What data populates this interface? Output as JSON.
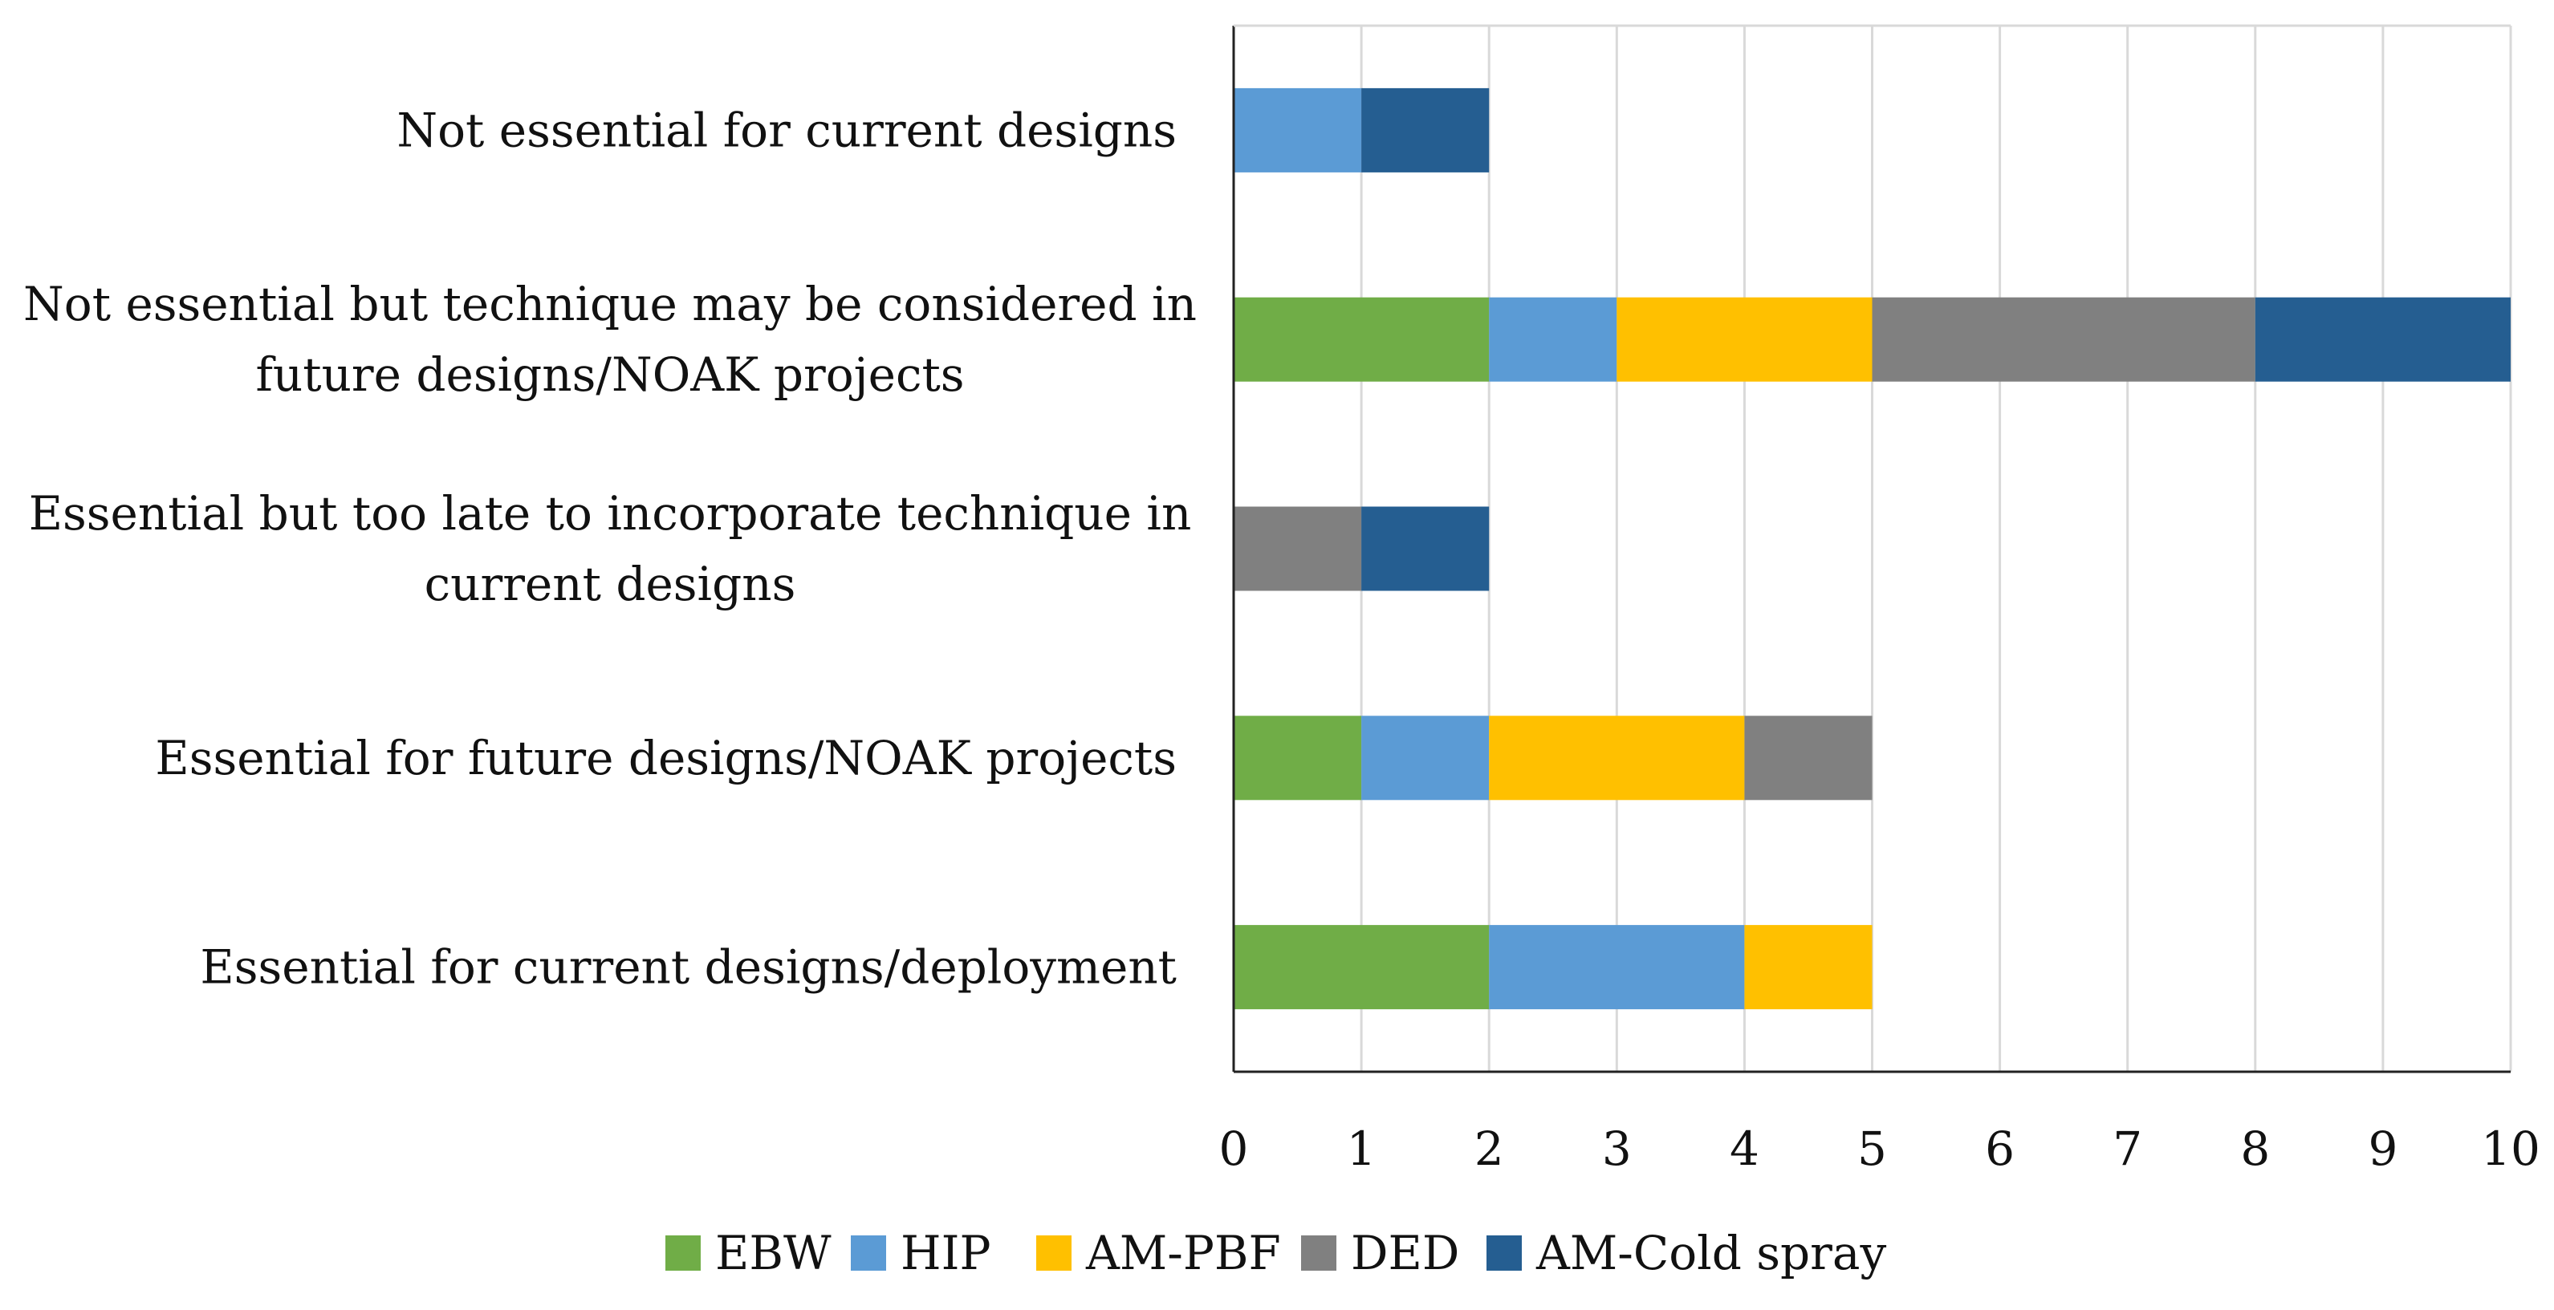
{
  "chart_data": {
    "type": "bar",
    "orientation": "horizontal",
    "stacked": true,
    "title": "",
    "xlabel": "",
    "ylabel": "",
    "xlim": [
      0,
      10
    ],
    "x_ticks": [
      0,
      1,
      2,
      3,
      4,
      5,
      6,
      7,
      8,
      9,
      10
    ],
    "grid": true,
    "legend_position": "bottom",
    "categories": [
      [
        "Not essential for current designs"
      ],
      [
        "Not essential but technique may be considered in",
        "future designs/NOAK projects"
      ],
      [
        "Essential but too late to incorporate technique in",
        "current designs"
      ],
      [
        "Essential for future designs/NOAK projects"
      ],
      [
        "Essential for current designs/deployment"
      ]
    ],
    "series": [
      {
        "name": "EBW",
        "color": "#70AD47",
        "values": [
          0,
          2,
          0,
          1,
          2
        ]
      },
      {
        "name": "HIP",
        "color": "#5B9BD5",
        "values": [
          1,
          1,
          0,
          1,
          2
        ]
      },
      {
        "name": "AM-PBF",
        "color": "#FFC000",
        "values": [
          0,
          2,
          0,
          2,
          1
        ]
      },
      {
        "name": "DED",
        "color": "#808080",
        "values": [
          0,
          3,
          1,
          1,
          0
        ]
      },
      {
        "name": "AM-Cold spray",
        "color": "#255E91",
        "values": [
          1,
          2,
          1,
          0,
          0
        ]
      }
    ]
  }
}
